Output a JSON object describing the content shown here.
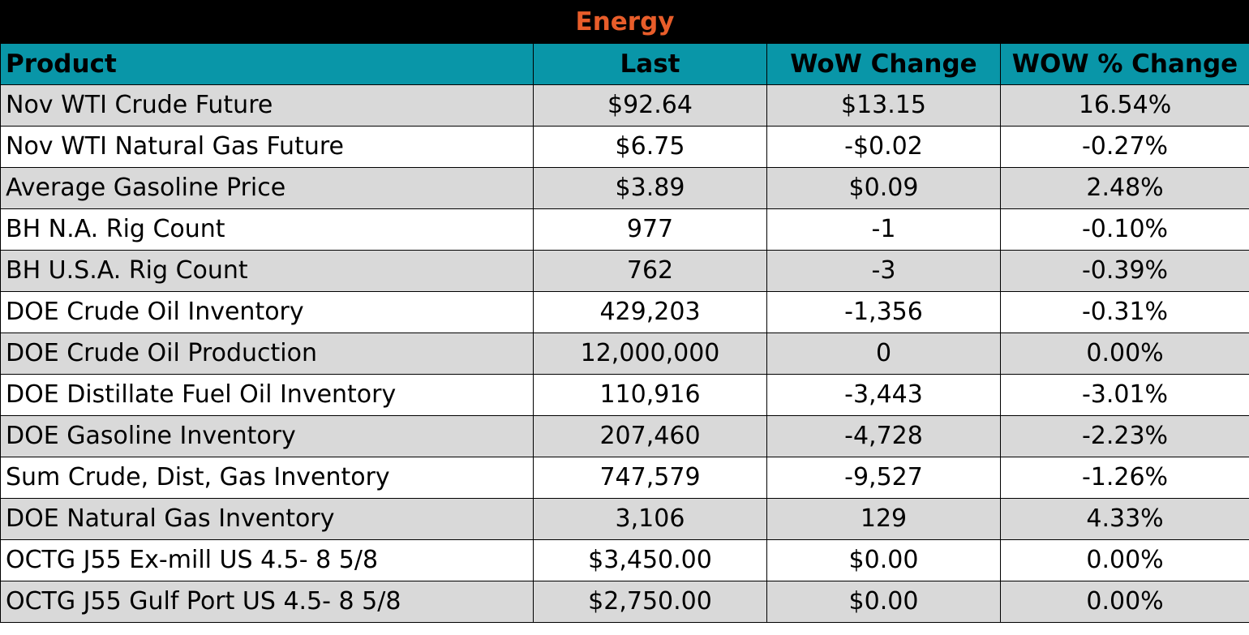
{
  "title": "Energy",
  "headers": [
    "Product",
    "Last",
    "WoW Change",
    "WOW % Change"
  ],
  "rows": [
    [
      "Nov WTI Crude Future",
      "$92.64",
      "$13.15",
      "16.54%"
    ],
    [
      "Nov WTI Natural Gas Future",
      "$6.75",
      "-$0.02",
      "-0.27%"
    ],
    [
      "Average Gasoline Price",
      "$3.89",
      "$0.09",
      "2.48%"
    ],
    [
      "BH N.A. Rig Count",
      "977",
      "-1",
      "-0.10%"
    ],
    [
      "BH U.S.A. Rig Count",
      "762",
      "-3",
      "-0.39%"
    ],
    [
      "DOE Crude Oil Inventory",
      "429,203",
      "-1,356",
      "-0.31%"
    ],
    [
      "DOE Crude Oil Production",
      "12,000,000",
      "0",
      "0.00%"
    ],
    [
      "DOE Distillate Fuel Oil Inventory",
      "110,916",
      "-3,443",
      "-3.01%"
    ],
    [
      "DOE Gasoline Inventory",
      "207,460",
      "-4,728",
      "-2.23%"
    ],
    [
      "Sum Crude, Dist, Gas Inventory",
      "747,579",
      "-9,527",
      "-1.26%"
    ],
    [
      "DOE Natural Gas Inventory",
      "3,106",
      "129",
      "4.33%"
    ],
    [
      "OCTG J55 Ex-mill US 4.5- 8 5/8",
      "$3,450.00",
      "$0.00",
      "0.00%"
    ],
    [
      "OCTG J55 Gulf Port US 4.5- 8 5/8",
      "$2,750.00",
      "$0.00",
      "0.00%"
    ]
  ],
  "colors": {
    "title_bg": "#000000",
    "title_text": "#e85d2a",
    "header_bg": "#0996a8",
    "shaded_row": "#d9d9d9",
    "plain_row": "#ffffff"
  }
}
